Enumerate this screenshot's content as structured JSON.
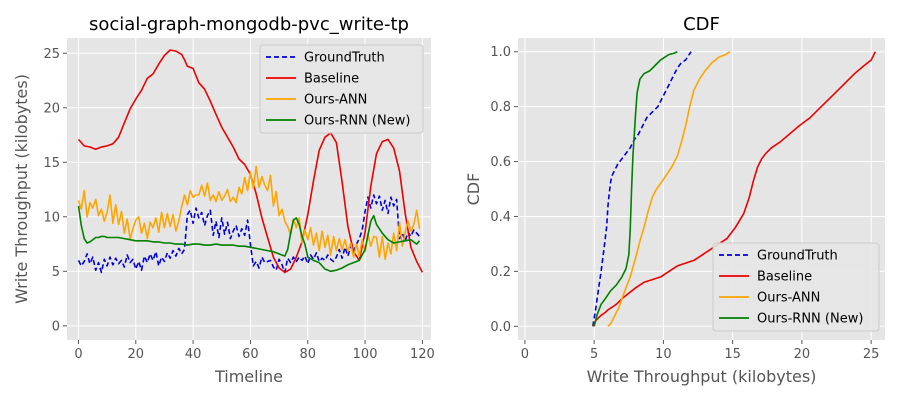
{
  "chart_data": [
    {
      "type": "line",
      "title": "social-graph-mongodb-pvc_write-tp",
      "xlabel": "Timeline",
      "ylabel": "Write Throughput (kilobytes)",
      "xlim": [
        -4,
        123
      ],
      "ylim": [
        -1.3,
        26.4
      ],
      "xticks": [
        0,
        20,
        40,
        60,
        80,
        100,
        120
      ],
      "yticks": [
        0,
        5,
        10,
        15,
        20,
        25
      ],
      "grid": true,
      "legend": "upper-right",
      "series": [
        {
          "name": "GroundTruth",
          "color": "#0000dd",
          "dash": true,
          "x": [
            0,
            1,
            2,
            3,
            4,
            5,
            6,
            7,
            8,
            9,
            10,
            11,
            12,
            13,
            14,
            15,
            16,
            17,
            18,
            19,
            20,
            21,
            22,
            23,
            24,
            25,
            26,
            27,
            28,
            29,
            30,
            31,
            32,
            33,
            34,
            35,
            36,
            37,
            38,
            39,
            40,
            41,
            42,
            43,
            44,
            45,
            46,
            47,
            48,
            49,
            50,
            51,
            52,
            53,
            54,
            55,
            56,
            57,
            58,
            59,
            60,
            61,
            62,
            63,
            64,
            65,
            66,
            67,
            68,
            69,
            70,
            71,
            72,
            73,
            74,
            75,
            76,
            77,
            78,
            79,
            80,
            81,
            82,
            83,
            84,
            85,
            86,
            87,
            88,
            89,
            90,
            91,
            92,
            93,
            94,
            95,
            96,
            97,
            98,
            99,
            100,
            101,
            102,
            103,
            104,
            105,
            106,
            107,
            108,
            109,
            110,
            111,
            112,
            113,
            114,
            115,
            116,
            117,
            118,
            119
          ],
          "values": [
            6.0,
            5.5,
            5.9,
            6.6,
            5.7,
            6.3,
            5.1,
            5.8,
            4.9,
            6.1,
            5.5,
            6.3,
            5.6,
            6.2,
            5.7,
            6.0,
            5.4,
            6.5,
            5.8,
            6.1,
            5.2,
            5.9,
            5.1,
            6.4,
            5.8,
            6.6,
            6.0,
            6.8,
            5.5,
            6.3,
            5.9,
            6.7,
            6.2,
            6.9,
            6.4,
            7.1,
            6.6,
            7.0,
            10.2,
            10.6,
            9.4,
            10.8,
            9.9,
            10.4,
            9.2,
            10.1,
            10.6,
            8.3,
            9.6,
            8.1,
            9.9,
            8.4,
            9.5,
            8.0,
            8.7,
            9.2,
            8.2,
            8.9,
            8.3,
            9.7,
            7.5,
            5.5,
            5.9,
            5.3,
            6.3,
            5.8,
            5.9,
            6.0,
            5.4,
            5.1,
            6.1,
            5.6,
            4.9,
            6.2,
            5.8,
            6.3,
            5.9,
            6.3,
            6.0,
            6.4,
            5.7,
            6.5,
            6.1,
            6.7,
            5.9,
            6.2,
            6.0,
            6.5,
            6.1,
            5.9,
            6.3,
            7.0,
            6.2,
            7.2,
            6.4,
            7.3,
            6.8,
            7.5,
            8.0,
            8.8,
            10.5,
            11.8,
            10.8,
            12.0,
            11.2,
            11.9,
            10.6,
            11.5,
            10.3,
            11.8,
            11.0,
            11.6,
            8.0,
            8.5,
            7.8,
            8.6,
            8.2,
            8.8,
            8.5,
            8.2
          ]
        },
        {
          "name": "Baseline",
          "color": "#ee0000",
          "dash": false,
          "x": [
            0,
            2,
            4,
            6,
            8,
            10,
            12,
            14,
            16,
            18,
            20,
            22,
            24,
            26,
            28,
            30,
            32,
            34,
            36,
            37,
            38,
            40,
            42,
            44,
            46,
            48,
            50,
            52,
            54,
            56,
            58,
            60,
            62,
            64,
            66,
            68,
            70,
            72,
            74,
            76,
            78,
            80,
            82,
            84,
            86,
            88,
            90,
            92,
            94,
            96,
            98,
            100,
            102,
            104,
            106,
            108,
            110,
            112,
            114,
            116,
            118,
            120
          ],
          "values": [
            17.1,
            16.5,
            16.4,
            16.2,
            16.4,
            16.5,
            16.7,
            17.3,
            18.6,
            19.9,
            20.8,
            21.6,
            22.7,
            23.1,
            24.0,
            24.8,
            25.3,
            25.2,
            24.9,
            24.4,
            23.8,
            23.6,
            22.3,
            21.7,
            20.6,
            19.4,
            18.2,
            17.3,
            16.4,
            15.3,
            14.8,
            13.9,
            12.1,
            9.9,
            8.1,
            6.3,
            5.3,
            4.9,
            5.2,
            6.3,
            7.7,
            10.2,
            13.3,
            16.1,
            17.3,
            17.7,
            16.8,
            13.2,
            9.1,
            6.8,
            6.0,
            8.6,
            12.8,
            15.8,
            16.9,
            17.1,
            16.3,
            14.2,
            10.3,
            7.2,
            5.9,
            4.9
          ]
        },
        {
          "name": "Ours-ANN",
          "color": "#ffa500",
          "dash": false,
          "x": [
            0,
            1,
            2,
            3,
            4,
            5,
            6,
            7,
            8,
            9,
            10,
            11,
            12,
            13,
            14,
            15,
            16,
            17,
            18,
            19,
            20,
            21,
            22,
            23,
            24,
            25,
            26,
            27,
            28,
            29,
            30,
            31,
            32,
            33,
            34,
            35,
            36,
            37,
            38,
            39,
            40,
            41,
            42,
            43,
            44,
            45,
            46,
            47,
            48,
            49,
            50,
            51,
            52,
            53,
            54,
            55,
            56,
            57,
            58,
            59,
            60,
            61,
            62,
            63,
            64,
            65,
            66,
            67,
            68,
            69,
            70,
            71,
            72,
            73,
            74,
            75,
            76,
            77,
            78,
            79,
            80,
            81,
            82,
            83,
            84,
            85,
            86,
            87,
            88,
            89,
            90,
            91,
            92,
            93,
            94,
            95,
            96,
            97,
            98,
            99,
            100,
            101,
            102,
            103,
            104,
            105,
            106,
            107,
            108,
            109,
            110,
            111,
            112,
            113,
            114,
            115,
            116,
            117,
            118,
            119
          ],
          "values": [
            11.5,
            10.7,
            12.4,
            10.0,
            11.3,
            10.8,
            11.6,
            10.1,
            10.7,
            9.6,
            10.4,
            12.0,
            9.4,
            11.1,
            9.3,
            10.5,
            8.5,
            9.8,
            8.0,
            8.9,
            9.7,
            10.0,
            8.5,
            9.4,
            8.0,
            9.5,
            9.0,
            9.9,
            8.6,
            10.4,
            9.0,
            10.3,
            9.1,
            10.2,
            8.7,
            9.6,
            10.9,
            12.0,
            11.1,
            12.4,
            11.8,
            12.0,
            12.0,
            12.9,
            11.9,
            13.1,
            11.5,
            12.0,
            11.4,
            12.3,
            11.5,
            11.9,
            12.5,
            11.4,
            11.8,
            11.3,
            12.7,
            12.1,
            13.6,
            12.4,
            14.1,
            12.6,
            14.6,
            12.7,
            13.7,
            12.9,
            12.4,
            13.8,
            11.0,
            12.3,
            10.1,
            10.7,
            9.6,
            9.1,
            8.3,
            9.8,
            9.0,
            9.9,
            7.6,
            8.8,
            7.9,
            9.0,
            7.4,
            8.5,
            6.9,
            8.7,
            7.2,
            8.3,
            6.5,
            8.2,
            6.9,
            8.0,
            7.0,
            7.9,
            6.8,
            7.6,
            6.3,
            7.5,
            6.4,
            7.9,
            6.8,
            8.4,
            7.3,
            8.2,
            8.1,
            6.3,
            8.2,
            6.1,
            7.6,
            6.6,
            8.5,
            6.9,
            9.5,
            7.3,
            8.6,
            9.6,
            8.7,
            9.3,
            10.6,
            8.9
          ]
        },
        {
          "name": "Ours-RNN (New)",
          "color": "#008000",
          "dash": false,
          "x": [
            0,
            1,
            2,
            3,
            4,
            5,
            6,
            7,
            8,
            9,
            10,
            12,
            14,
            16,
            18,
            20,
            22,
            24,
            26,
            28,
            30,
            32,
            34,
            36,
            38,
            40,
            42,
            44,
            46,
            48,
            50,
            52,
            54,
            56,
            58,
            60,
            62,
            64,
            66,
            68,
            70,
            72,
            73,
            74,
            75,
            76,
            77,
            78,
            79,
            80,
            82,
            84,
            86,
            88,
            90,
            92,
            94,
            96,
            98,
            100,
            101,
            102,
            103,
            104,
            106,
            108,
            110,
            112,
            114,
            116,
            118,
            119
          ],
          "values": [
            11.0,
            9.2,
            8.0,
            7.6,
            7.7,
            7.9,
            8.1,
            8.1,
            8.2,
            8.2,
            8.1,
            8.1,
            8.1,
            8.0,
            7.9,
            7.8,
            7.8,
            7.8,
            7.7,
            7.7,
            7.6,
            7.6,
            7.5,
            7.5,
            7.4,
            7.5,
            7.5,
            7.4,
            7.4,
            7.5,
            7.4,
            7.4,
            7.4,
            7.3,
            7.3,
            7.2,
            7.1,
            7.0,
            6.9,
            6.8,
            6.6,
            6.4,
            7.0,
            8.5,
            9.7,
            9.9,
            9.3,
            8.2,
            7.5,
            6.3,
            6.0,
            5.8,
            5.2,
            5.0,
            5.1,
            5.3,
            5.6,
            5.8,
            6.0,
            7.0,
            8.3,
            9.6,
            10.1,
            9.3,
            8.5,
            7.9,
            7.6,
            7.7,
            7.8,
            7.9,
            7.5,
            7.8
          ]
        }
      ]
    },
    {
      "type": "line",
      "title": "CDF",
      "xlabel": "Write Throughput (kilobytes)",
      "ylabel": "CDF",
      "xlim": [
        -0.5,
        26.0
      ],
      "ylim": [
        -0.05,
        1.05
      ],
      "xticks": [
        0,
        5,
        10,
        15,
        20,
        25
      ],
      "yticks": [
        0.0,
        0.2,
        0.4,
        0.6,
        0.8,
        1.0
      ],
      "ytick_labels": [
        "0.0",
        "0.2",
        "0.4",
        "0.6",
        "0.8",
        "1.0"
      ],
      "grid": true,
      "legend": "lower-right",
      "series": [
        {
          "name": "GroundTruth",
          "color": "#0000dd",
          "dash": true,
          "x": [
            4.9,
            5.1,
            5.3,
            5.5,
            5.7,
            5.9,
            6.0,
            6.1,
            6.2,
            6.3,
            6.5,
            6.7,
            7.0,
            7.3,
            7.6,
            7.9,
            8.2,
            8.5,
            8.8,
            9.2,
            9.6,
            10.0,
            10.4,
            10.7,
            11.0,
            11.3,
            11.6,
            11.8,
            12.0
          ],
          "values": [
            0.0,
            0.06,
            0.13,
            0.2,
            0.28,
            0.36,
            0.44,
            0.49,
            0.53,
            0.55,
            0.57,
            0.59,
            0.61,
            0.63,
            0.65,
            0.68,
            0.7,
            0.73,
            0.76,
            0.78,
            0.8,
            0.84,
            0.88,
            0.91,
            0.94,
            0.96,
            0.97,
            0.985,
            1.0
          ]
        },
        {
          "name": "Baseline",
          "color": "#ee0000",
          "dash": false,
          "x": [
            4.9,
            5.1,
            5.3,
            5.5,
            5.8,
            6.0,
            6.3,
            6.6,
            7.0,
            7.5,
            8.0,
            8.6,
            9.2,
            9.8,
            10.4,
            11.0,
            11.6,
            12.2,
            12.8,
            13.4,
            14.0,
            14.6,
            15.2,
            15.8,
            16.2,
            16.5,
            16.8,
            17.1,
            17.4,
            17.8,
            18.4,
            19.1,
            19.8,
            20.6,
            21.4,
            22.2,
            23.0,
            23.8,
            24.5,
            25.0,
            25.3
          ],
          "values": [
            0.0,
            0.02,
            0.03,
            0.04,
            0.05,
            0.06,
            0.07,
            0.08,
            0.1,
            0.12,
            0.14,
            0.16,
            0.17,
            0.18,
            0.2,
            0.22,
            0.23,
            0.24,
            0.26,
            0.28,
            0.3,
            0.32,
            0.36,
            0.41,
            0.47,
            0.53,
            0.58,
            0.61,
            0.63,
            0.65,
            0.67,
            0.7,
            0.73,
            0.76,
            0.8,
            0.84,
            0.88,
            0.92,
            0.95,
            0.97,
            1.0
          ]
        },
        {
          "name": "Ours-ANN",
          "color": "#ffa500",
          "dash": false,
          "x": [
            6.0,
            6.2,
            6.4,
            6.6,
            6.8,
            7.0,
            7.3,
            7.6,
            8.0,
            8.3,
            8.6,
            8.9,
            9.2,
            9.5,
            9.8,
            10.2,
            10.6,
            11.0,
            11.3,
            11.6,
            11.9,
            12.2,
            12.6,
            13.0,
            13.5,
            14.0,
            14.5,
            14.8
          ],
          "values": [
            0.0,
            0.01,
            0.03,
            0.05,
            0.07,
            0.1,
            0.14,
            0.18,
            0.25,
            0.31,
            0.36,
            0.42,
            0.47,
            0.5,
            0.52,
            0.55,
            0.58,
            0.62,
            0.67,
            0.73,
            0.8,
            0.86,
            0.9,
            0.93,
            0.96,
            0.98,
            0.99,
            1.0
          ]
        },
        {
          "name": "Ours-RNN (New)",
          "color": "#008000",
          "dash": false,
          "x": [
            5.0,
            5.2,
            5.5,
            5.8,
            6.2,
            6.6,
            7.0,
            7.3,
            7.5,
            7.6,
            7.7,
            7.8,
            7.9,
            8.0,
            8.1,
            8.3,
            8.6,
            9.0,
            9.4,
            9.8,
            10.1,
            10.4,
            10.8,
            11.0
          ],
          "values": [
            0.0,
            0.04,
            0.08,
            0.1,
            0.13,
            0.15,
            0.18,
            0.21,
            0.26,
            0.35,
            0.5,
            0.62,
            0.7,
            0.78,
            0.85,
            0.9,
            0.92,
            0.93,
            0.95,
            0.97,
            0.98,
            0.99,
            0.995,
            1.0
          ]
        }
      ]
    }
  ]
}
